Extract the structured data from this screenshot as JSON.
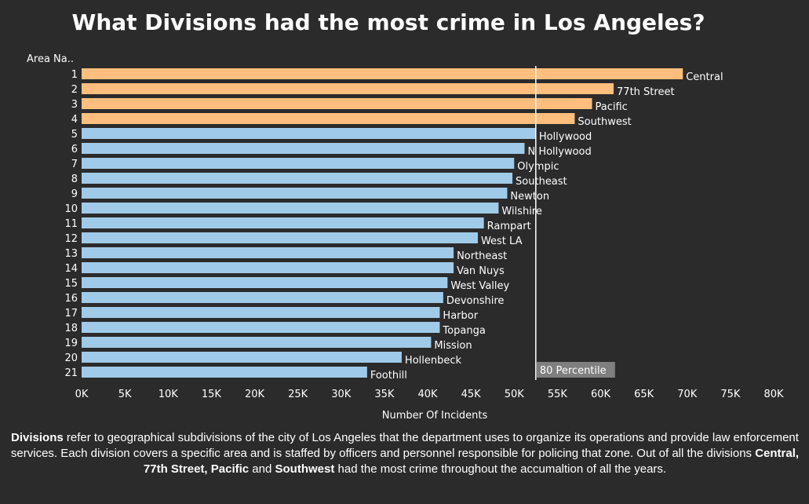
{
  "chart_data": {
    "type": "bar",
    "orientation": "horizontal",
    "title": "What Divisions had the most crime in Los Angeles?",
    "row_header": "Area Na..",
    "xlabel": "Number Of Incidents",
    "xlim": [
      0,
      80000
    ],
    "x_ticks": [
      "0K",
      "5K",
      "10K",
      "15K",
      "20K",
      "25K",
      "30K",
      "35K",
      "40K",
      "45K",
      "50K",
      "55K",
      "60K",
      "65K",
      "70K",
      "75K",
      "80K"
    ],
    "ranks": [
      "1",
      "2",
      "3",
      "4",
      "5",
      "6",
      "7",
      "8",
      "9",
      "10",
      "11",
      "12",
      "13",
      "14",
      "15",
      "16",
      "17",
      "18",
      "19",
      "20",
      "21"
    ],
    "categories": [
      "Central",
      "77th Street",
      "Pacific",
      "Southwest",
      "Hollywood",
      "N Hollywood",
      "Olympic",
      "Southeast",
      "Newton",
      "Wilshire",
      "Rampart",
      "West LA",
      "Northeast",
      "Van Nuys",
      "West Valley",
      "Devonshire",
      "Harbor",
      "Topanga",
      "Mission",
      "Hollenbeck",
      "Foothill"
    ],
    "values": [
      69500,
      61500,
      59000,
      57000,
      52500,
      51200,
      50000,
      49800,
      49200,
      48200,
      46500,
      45800,
      43000,
      43000,
      42300,
      41800,
      41400,
      41400,
      40400,
      37000,
      33000
    ],
    "top_count": 4,
    "reference_line": {
      "label": "80 Percentile",
      "value": 52500
    },
    "colors": {
      "top": "#ffbe7d",
      "rest": "#a0cbe8",
      "background": "#2b2b2b",
      "text": "#ffffff",
      "ref_label_bg": "#7f7f7f"
    },
    "grid": false
  },
  "description": {
    "b1": "Divisions",
    "t1": " refer to geographical subdivisions of the city of Los Angeles that the department uses to organize its operations and provide law enforcement services. Each division covers a specific area and is staffed by officers and personnel responsible for policing that zone. Out of all the divisions ",
    "b2": "Central, 77th Street, Pacific",
    "t2": " and ",
    "b3": "Southwest",
    "t3": " had the most crime throughout the accumaltion of all the years."
  }
}
